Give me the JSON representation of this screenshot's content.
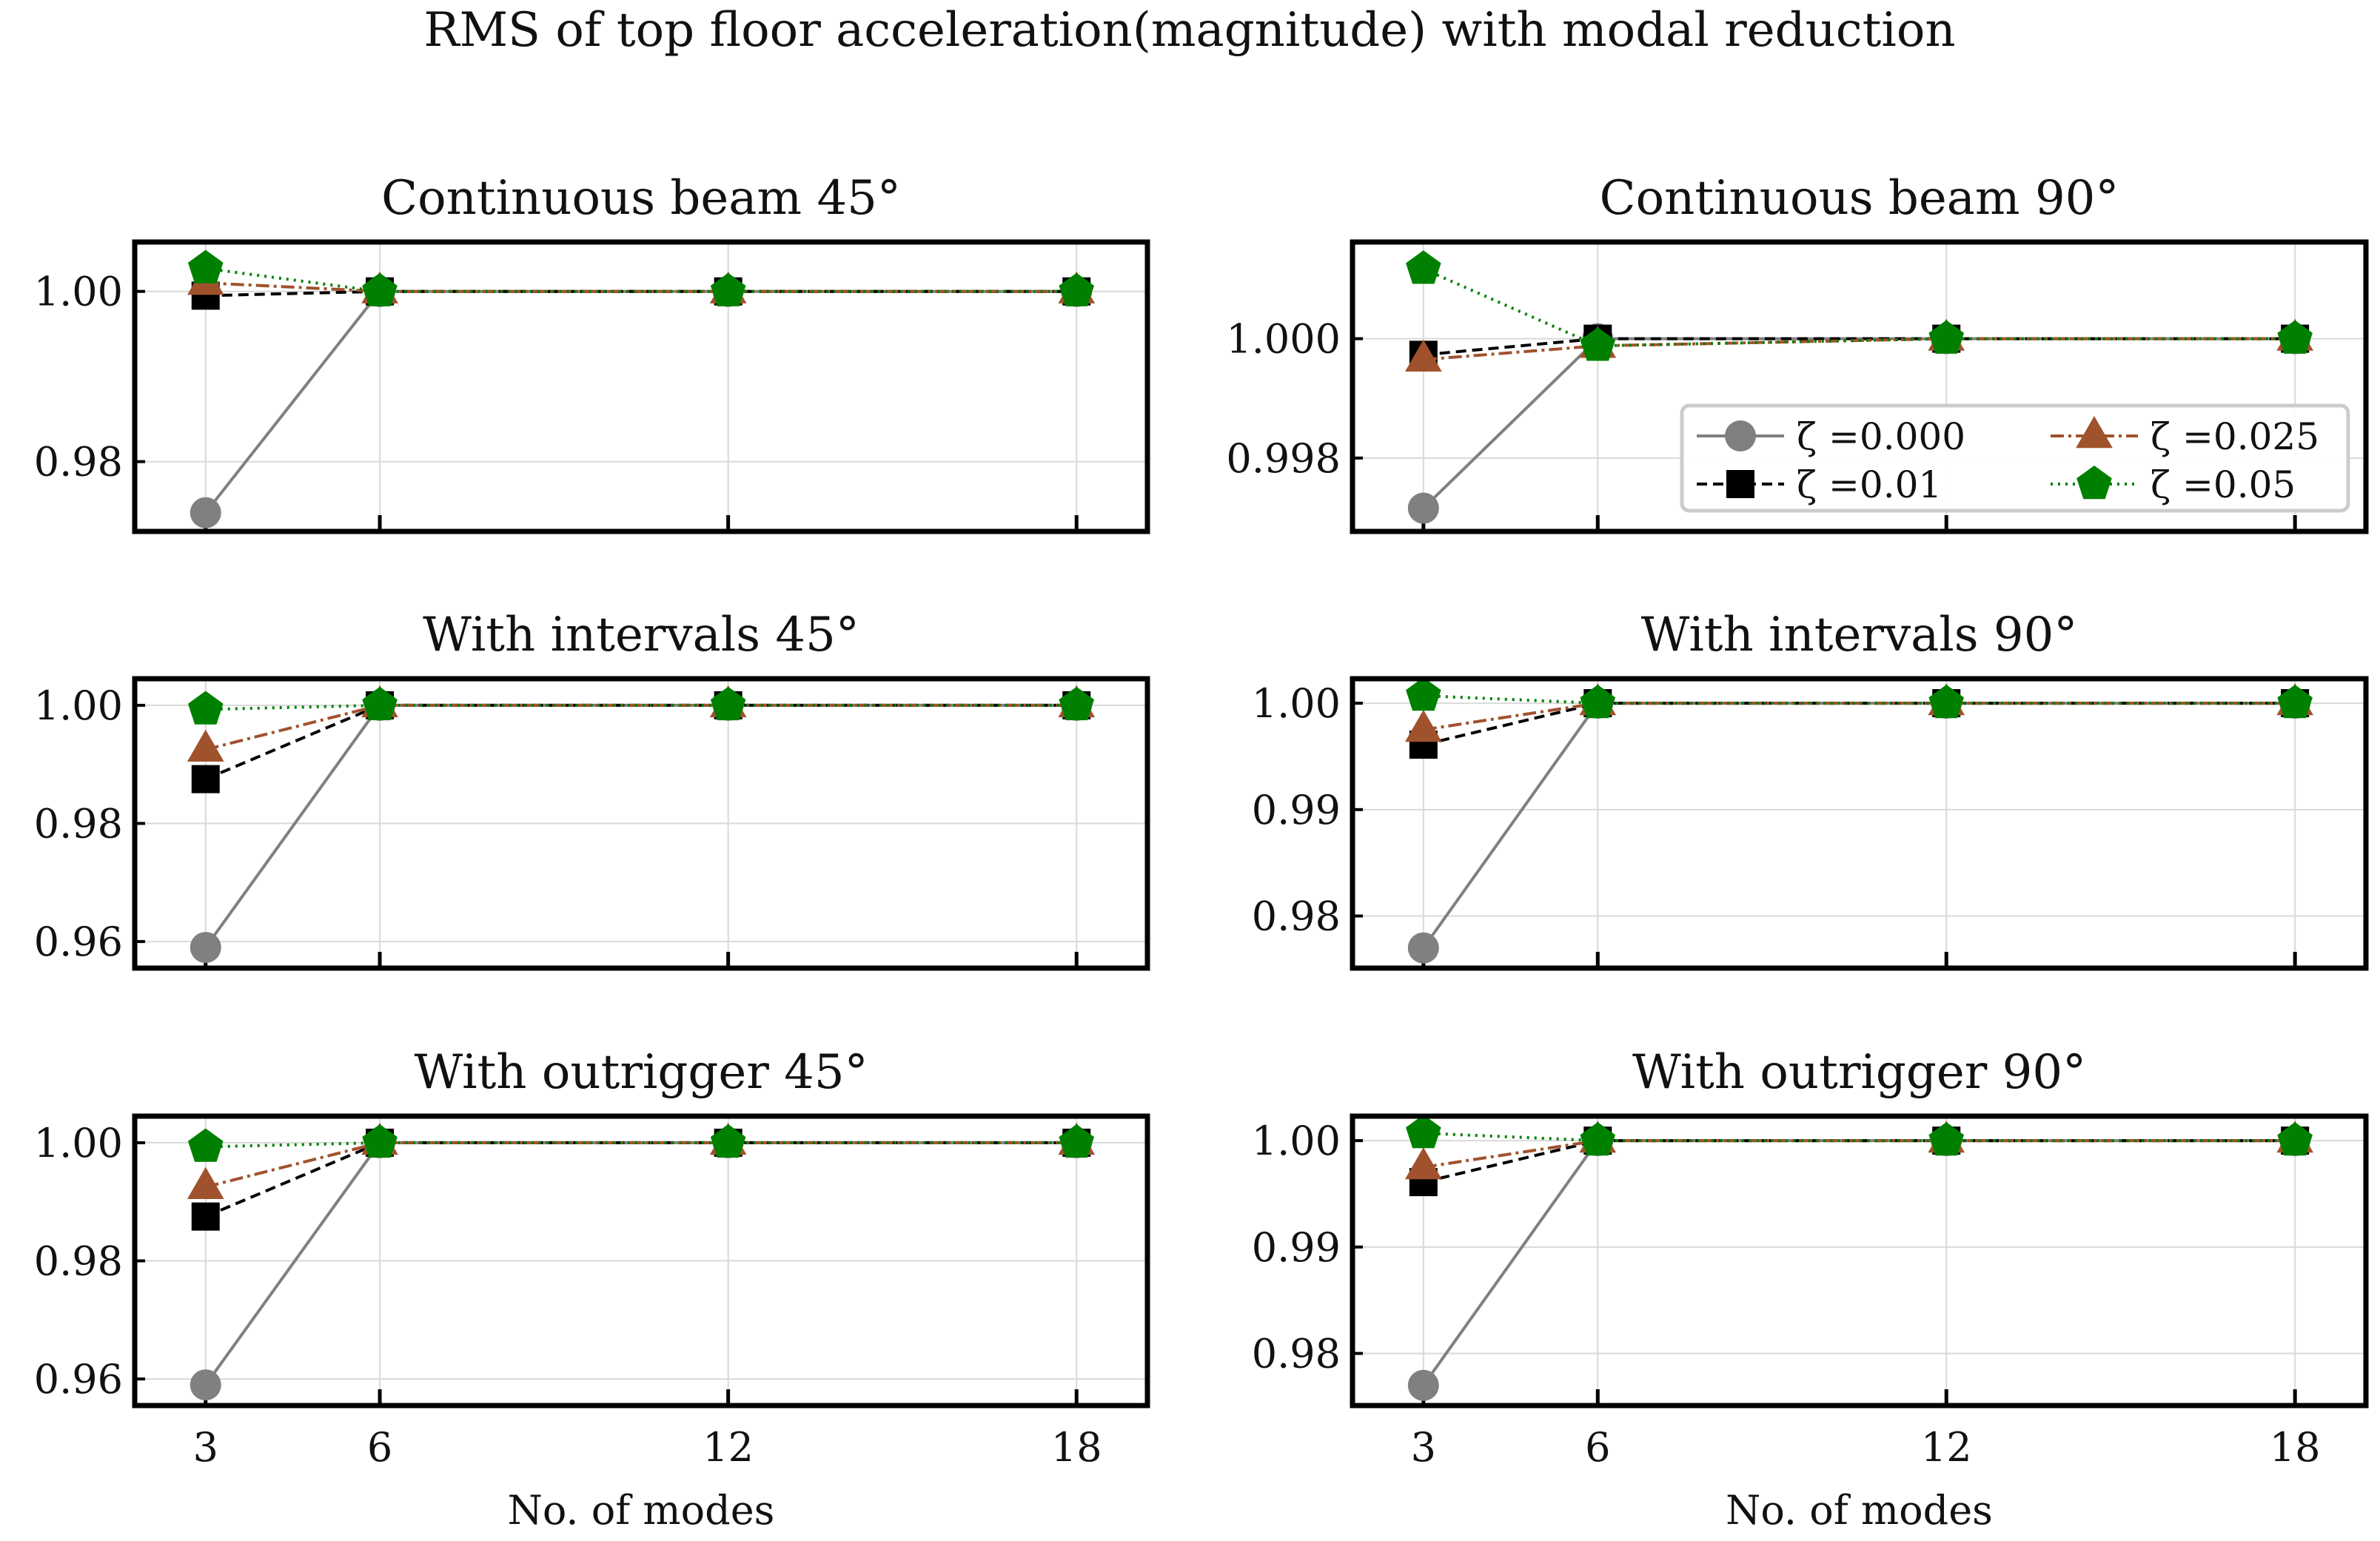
{
  "suptitle": "RMS of top floor acceleration(magnitude) with modal reduction",
  "colors": {
    "zeta_0": "#808080",
    "zeta_001": "#000000",
    "zeta_0025": "#a0522d",
    "zeta_005": "#008000",
    "axes": "#000000",
    "grid": "#d9d9d9"
  },
  "legend": {
    "placement": "lower-right of top-right panel",
    "entries": [
      "ζ =0.000",
      "ζ =0.01",
      "ζ =0.025",
      "ζ =0.05"
    ]
  },
  "chart_data": [
    {
      "type": "line",
      "title": "Continuous beam 45°",
      "xlabel": "",
      "x": [
        3,
        6,
        12,
        18
      ],
      "x_tick_labels": [],
      "ylim": [
        0.9718,
        1.0058
      ],
      "yticks": [
        0.98,
        1.0
      ],
      "ytick_labels": [
        "0.98",
        "1.00"
      ],
      "grid": true,
      "series": [
        {
          "name": "ζ =0.000",
          "values": [
            0.974,
            1.0,
            1.0,
            1.0
          ]
        },
        {
          "name": "ζ =0.01",
          "values": [
            0.9995,
            1.0,
            1.0,
            1.0
          ]
        },
        {
          "name": "ζ =0.025",
          "values": [
            1.001,
            1.0,
            1.0,
            1.0
          ]
        },
        {
          "name": "ζ =0.05",
          "values": [
            1.0027,
            1.0,
            1.0,
            1.0
          ]
        }
      ]
    },
    {
      "type": "line",
      "title": "Continuous beam 90°",
      "xlabel": "",
      "x": [
        3,
        6,
        12,
        18
      ],
      "x_tick_labels": [],
      "ylim": [
        0.99677,
        1.00162
      ],
      "yticks": [
        0.998,
        1.0
      ],
      "ytick_labels": [
        "0.998",
        "1.000"
      ],
      "grid": true,
      "legend": true,
      "series": [
        {
          "name": "ζ =0.000",
          "values": [
            0.99716,
            1.0,
            1.0,
            1.0
          ]
        },
        {
          "name": "ζ =0.01",
          "values": [
            0.99973,
            1.0,
            1.0,
            1.0
          ]
        },
        {
          "name": "ζ =0.025",
          "values": [
            0.99965,
            0.99988,
            1.0,
            1.0
          ]
        },
        {
          "name": "ζ =0.05",
          "values": [
            1.00117,
            0.99988,
            1.0,
            1.0
          ]
        }
      ]
    },
    {
      "type": "line",
      "title": "With intervals 45°",
      "xlabel": "",
      "x": [
        3,
        6,
        12,
        18
      ],
      "x_tick_labels": [],
      "ylim": [
        0.9555,
        1.0045
      ],
      "yticks": [
        0.96,
        0.98,
        1.0
      ],
      "ytick_labels": [
        "0.96",
        "0.98",
        "1.00"
      ],
      "grid": true,
      "series": [
        {
          "name": "ζ =0.000",
          "values": [
            0.959,
            1.0,
            1.0,
            1.0
          ]
        },
        {
          "name": "ζ =0.01",
          "values": [
            0.9875,
            1.0,
            1.0,
            1.0
          ]
        },
        {
          "name": "ζ =0.025",
          "values": [
            0.9925,
            1.0,
            1.0,
            1.0
          ]
        },
        {
          "name": "ζ =0.05",
          "values": [
            0.9993,
            1.0,
            1.0,
            1.0
          ]
        }
      ]
    },
    {
      "type": "line",
      "title": "With intervals 90°",
      "xlabel": "",
      "x": [
        3,
        6,
        12,
        18
      ],
      "x_tick_labels": [],
      "ylim": [
        0.9751,
        1.0023
      ],
      "yticks": [
        0.98,
        0.99,
        1.0
      ],
      "ytick_labels": [
        "0.98",
        "0.99",
        "1.00"
      ],
      "grid": true,
      "series": [
        {
          "name": "ζ =0.000",
          "values": [
            0.977,
            1.0,
            1.0,
            1.0
          ]
        },
        {
          "name": "ζ =0.01",
          "values": [
            0.9961,
            1.0,
            1.0,
            1.0
          ]
        },
        {
          "name": "ζ =0.025",
          "values": [
            0.9975,
            1.0,
            1.0,
            1.0
          ]
        },
        {
          "name": "ζ =0.05",
          "values": [
            1.0007,
            1.0,
            1.0,
            1.0
          ]
        }
      ]
    },
    {
      "type": "line",
      "title": "With outrigger 45°",
      "xlabel": "No. of modes",
      "x": [
        3,
        6,
        12,
        18
      ],
      "x_tick_labels": [
        "3",
        "6",
        "12",
        "18"
      ],
      "ylim": [
        0.9555,
        1.0045
      ],
      "yticks": [
        0.96,
        0.98,
        1.0
      ],
      "ytick_labels": [
        "0.96",
        "0.98",
        "1.00"
      ],
      "grid": true,
      "series": [
        {
          "name": "ζ =0.000",
          "values": [
            0.959,
            1.0,
            1.0,
            1.0
          ]
        },
        {
          "name": "ζ =0.01",
          "values": [
            0.9875,
            1.0,
            1.0,
            1.0
          ]
        },
        {
          "name": "ζ =0.025",
          "values": [
            0.9925,
            1.0,
            1.0,
            1.0
          ]
        },
        {
          "name": "ζ =0.05",
          "values": [
            0.9993,
            1.0,
            1.0,
            1.0
          ]
        }
      ]
    },
    {
      "type": "line",
      "title": "With outrigger 90°",
      "xlabel": "No. of modes",
      "x": [
        3,
        6,
        12,
        18
      ],
      "x_tick_labels": [
        "3",
        "6",
        "12",
        "18"
      ],
      "ylim": [
        0.9751,
        1.0023
      ],
      "yticks": [
        0.98,
        0.99,
        1.0
      ],
      "ytick_labels": [
        "0.98",
        "0.99",
        "1.00"
      ],
      "grid": true,
      "series": [
        {
          "name": "ζ =0.000",
          "values": [
            0.977,
            1.0,
            1.0,
            1.0
          ]
        },
        {
          "name": "ζ =0.01",
          "values": [
            0.9961,
            1.0,
            1.0,
            1.0
          ]
        },
        {
          "name": "ζ =0.025",
          "values": [
            0.9975,
            1.0,
            1.0,
            1.0
          ]
        },
        {
          "name": "ζ =0.05",
          "values": [
            1.0007,
            1.0,
            1.0,
            1.0
          ]
        }
      ]
    }
  ]
}
